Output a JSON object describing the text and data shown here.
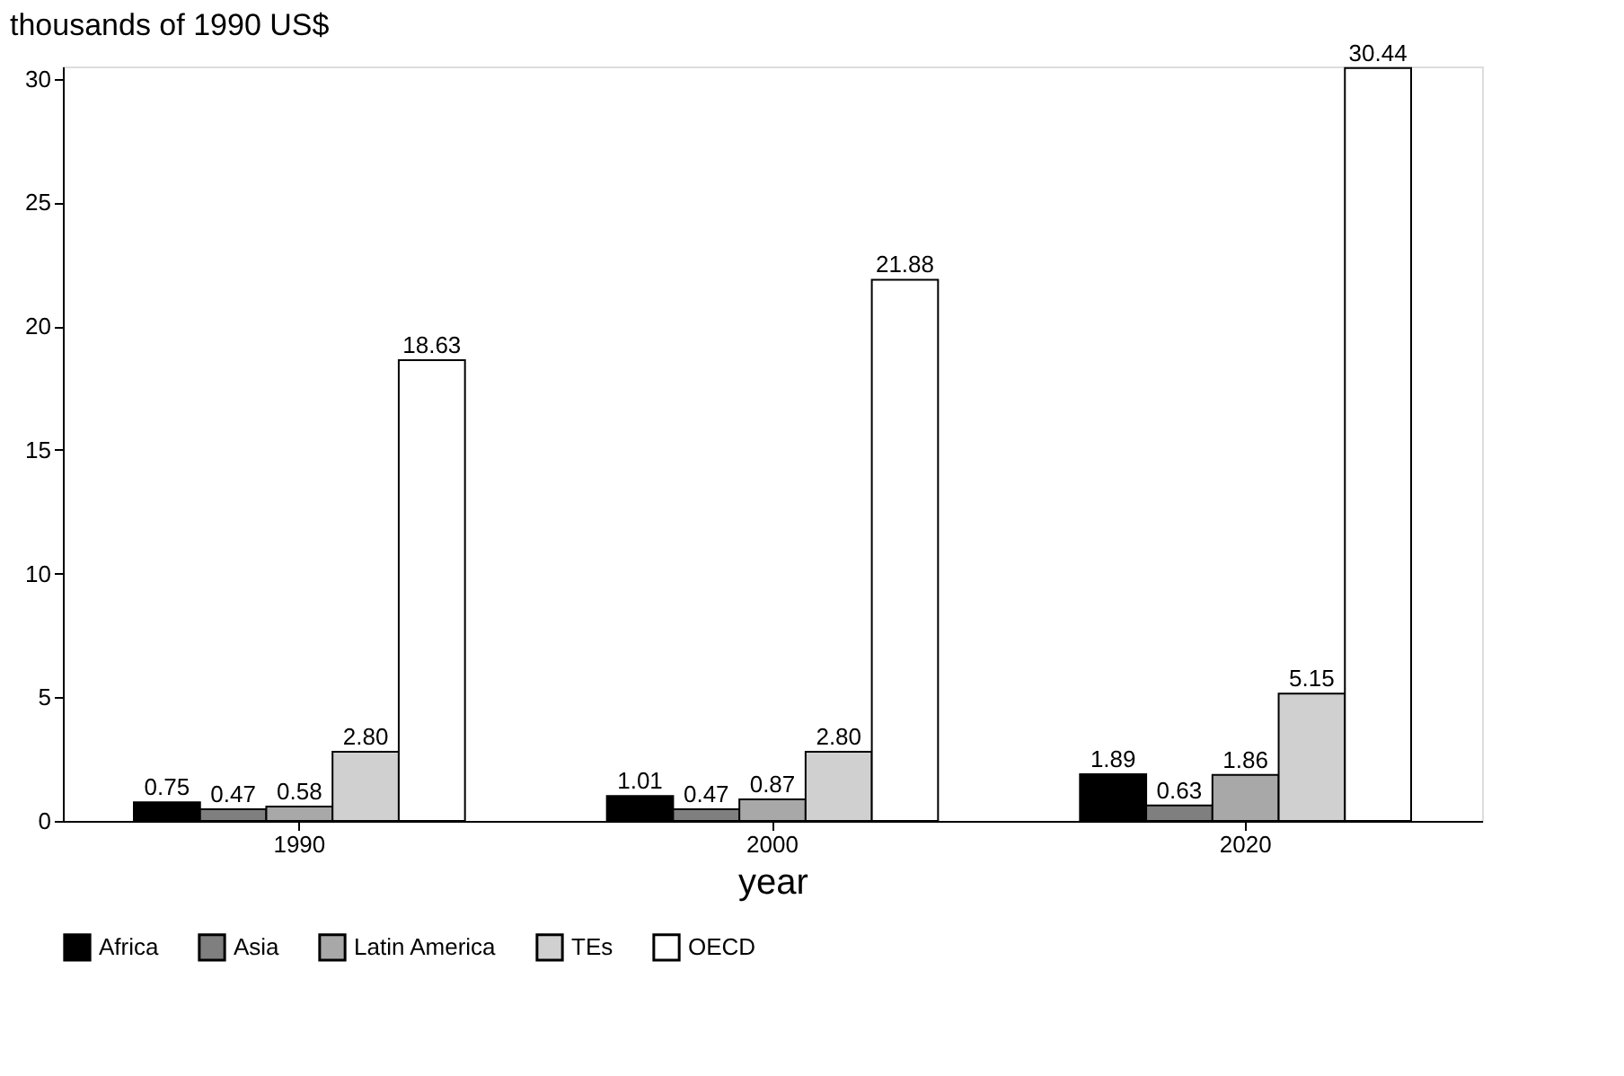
{
  "chart_data": {
    "type": "bar",
    "categories": [
      "1990",
      "2000",
      "2020"
    ],
    "xlabel": "year",
    "ylabel": "thousands of 1990 US$",
    "ylim": [
      0,
      30.5
    ],
    "yticks": [
      0,
      5,
      10,
      15,
      20,
      25,
      30
    ],
    "grid": false,
    "legend": "bottom",
    "series": [
      {
        "name": "Africa",
        "color": "#000000",
        "values": [
          0.75,
          1.01,
          1.89
        ],
        "value_labels": [
          "0.75",
          "1.01",
          "1.89"
        ]
      },
      {
        "name": "Asia",
        "color": "#7f7f7f",
        "values": [
          0.47,
          0.47,
          0.63
        ],
        "value_labels": [
          "0.47",
          "0.47",
          "0.63"
        ]
      },
      {
        "name": "Latin America",
        "color": "#a8a8a8",
        "values": [
          0.58,
          0.87,
          1.86
        ],
        "value_labels": [
          "0.58",
          "0.87",
          "1.86"
        ]
      },
      {
        "name": "TEs",
        "color": "#d0d0d0",
        "values": [
          2.8,
          2.8,
          5.15
        ],
        "value_labels": [
          "2.80",
          "2.80",
          "5.15"
        ]
      },
      {
        "name": "OECD",
        "color": "#ffffff",
        "values": [
          18.63,
          21.88,
          30.44
        ],
        "value_labels": [
          "18.63",
          "21.88",
          "30.44"
        ]
      }
    ]
  }
}
